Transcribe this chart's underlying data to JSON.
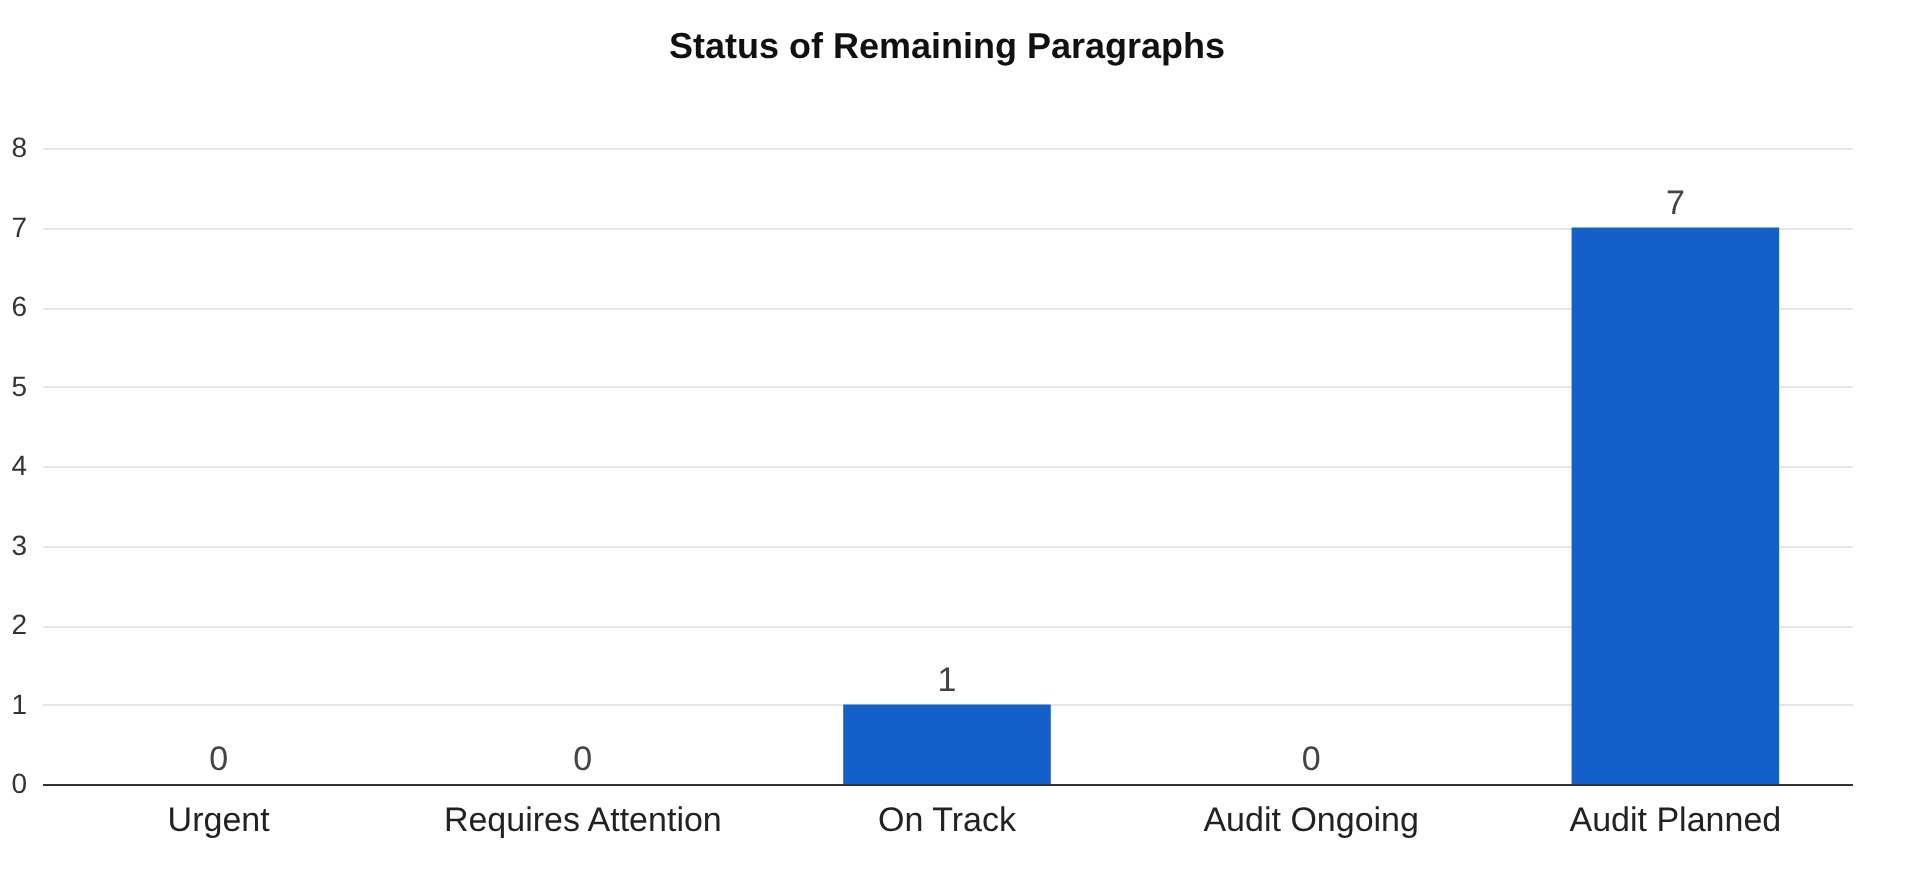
{
  "chart_data": {
    "type": "bar",
    "title": "Status of Remaining Paragraphs",
    "categories": [
      "Urgent",
      "Requires Attention",
      "On Track",
      "Audit Ongoing",
      "Audit Planned"
    ],
    "values": [
      0,
      0,
      1,
      0,
      7
    ],
    "color": "#1560c8",
    "ylim": [
      0,
      8
    ],
    "yticks": [
      0,
      1,
      2,
      3,
      4,
      5,
      6,
      7,
      8
    ],
    "grid": "y",
    "data_labels": true
  }
}
